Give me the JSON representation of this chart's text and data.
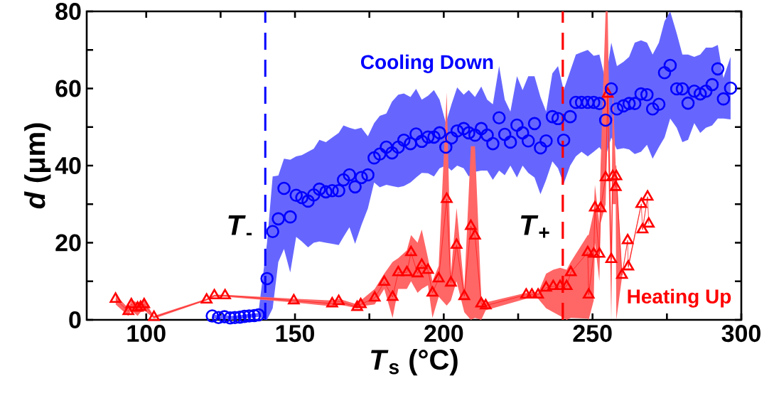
{
  "chart_data": {
    "type": "scatter",
    "xlabel": "*T*$_{s}$ (°C)",
    "ylabel": "*d* (μm)",
    "xlim": [
      80,
      300
    ],
    "ylim": [
      0,
      80
    ],
    "xticks": [
      100,
      {
        "value": 125,
        "label": null
      },
      150,
      {
        "value": 175,
        "label": null
      },
      200,
      {
        "value": 225,
        "label": null
      },
      250,
      {
        "value": 275,
        "label": null
      },
      300
    ],
    "yticks": [
      0,
      {
        "value": 10,
        "label": null
      },
      20,
      {
        "value": 30,
        "label": null
      },
      40,
      {
        "value": 50,
        "label": null
      },
      60,
      {
        "value": 70,
        "label": null
      },
      80
    ],
    "grid": false,
    "legend": false,
    "ref_lines": [
      {
        "axis": "x",
        "value": 140,
        "label": "*T*$_{-}$",
        "color": "#0000ff",
        "line_style": "dashed"
      },
      {
        "axis": "x",
        "value": 240,
        "label": "*T*$_{+}$",
        "color": "#ff0000",
        "line_style": "dashed"
      }
    ],
    "series": [
      {
        "name": "Cooling Down",
        "type": "scatter",
        "marker": "circle",
        "color": "#0000ff",
        "x": [
          122.2,
          124.3,
          126.3,
          128.2,
          129.8,
          131.5,
          133.0,
          134.6,
          136.3,
          137.7,
          140.6,
          142.5,
          144.4,
          146.3,
          148.4,
          150.4,
          152.3,
          154.4,
          156.3,
          158.2,
          160.4,
          162.5,
          164.7,
          166.3,
          168.3,
          170.2,
          172.3,
          174.5,
          176.6,
          178.5,
          180.7,
          182.6,
          184.7,
          186.6,
          188.8,
          190.7,
          192.6,
          194.7,
          196.7,
          198.6,
          200.7,
          202.6,
          204.5,
          206.7,
          208.4,
          210.5,
          212.6,
          214.6,
          216.5,
          218.6,
          220.5,
          222.4,
          224.6,
          226.5,
          228.4,
          230.5,
          232.5,
          234.4,
          236.5,
          238.4,
          240.3,
          242.5,
          244.4,
          246.3,
          248.4,
          250.4,
          252.3,
          254.4,
          256.3,
          258.2,
          260.4,
          262.3,
          264.2,
          266.3,
          268.3,
          270.2,
          272.3,
          274.2,
          276.1,
          278.3,
          280.2,
          282.1,
          284.2,
          286.2,
          288.1,
          290.2,
          292.1,
          294.0,
          296.4
        ],
        "values": [
          1.0,
          0.6,
          0.8,
          0.5,
          0.6,
          0.7,
          0.9,
          1.0,
          1.1,
          1.3,
          10.7,
          22.9,
          26.2,
          34.1,
          26.7,
          32.3,
          31.7,
          30.8,
          32.4,
          33.9,
          33.2,
          33.5,
          33.5,
          36.3,
          37.6,
          34.5,
          36.9,
          37.6,
          42.0,
          43.0,
          44.8,
          43.3,
          44.8,
          46.6,
          45.7,
          48.2,
          46.3,
          47.4,
          47.4,
          48.5,
          44.8,
          47.2,
          49.0,
          49.6,
          48.5,
          47.9,
          49.6,
          47.9,
          45.7,
          52.4,
          48.1,
          46.1,
          50.5,
          48.5,
          46.4,
          50.9,
          44.6,
          46.4,
          52.7,
          52.2,
          46.6,
          52.7,
          56.4,
          56.4,
          56.4,
          56.4,
          56.1,
          51.8,
          59.9,
          54.7,
          55.5,
          56.1,
          56.1,
          58.6,
          58.4,
          54.7,
          55.9,
          64.1,
          66.0,
          59.9,
          59.9,
          56.2,
          59.3,
          58.6,
          59.3,
          61.0,
          65.1,
          57.3,
          60.1
        ],
        "lower": [
          0.5,
          0.1,
          0.3,
          0,
          0.1,
          0.2,
          0.4,
          0.5,
          0.6,
          0.8,
          0,
          3,
          15,
          18.4,
          12.3,
          21.5,
          20.3,
          18.8,
          20.0,
          20.3,
          20.0,
          19.7,
          19.4,
          21.5,
          24.0,
          19.7,
          24.5,
          28.9,
          35.6,
          34.4,
          35.0,
          34.7,
          34.4,
          34.7,
          35.6,
          36.9,
          38.1,
          38.0,
          37.2,
          39.3,
          40.0,
          38.7,
          40,
          39.3,
          37.2,
          38.4,
          38.7,
          38.7,
          36.3,
          38.7,
          37.5,
          40,
          36.9,
          40,
          38.1,
          36.9,
          32.6,
          36.3,
          41.1,
          39.3,
          35.3,
          40,
          42.4,
          43.6,
          42.4,
          43.6,
          44.8,
          42.4,
          47.3,
          44.2,
          44.5,
          44.2,
          43.0,
          43.6,
          45.4,
          41.8,
          44.8,
          47.3,
          52.2,
          49.8,
          46.1,
          46.7,
          51.0,
          48.5,
          49.8,
          50.4,
          52.2,
          52.2,
          52.0
        ],
        "upper": [
          1.5,
          1.1,
          1.3,
          1.0,
          1.1,
          1.2,
          1.4,
          1.5,
          1.6,
          1.8,
          20,
          37.2,
          37.4,
          41.8,
          41.5,
          42.4,
          42.7,
          43.6,
          44.4,
          46.7,
          46.1,
          47.3,
          48.5,
          50.4,
          49.8,
          49.4,
          49.8,
          47.6,
          51.0,
          52.9,
          53.5,
          56.6,
          58.4,
          58.7,
          57.8,
          59.9,
          57.1,
          58.1,
          59.6,
          57.1,
          51.0,
          55.9,
          60.3,
          58.4,
          59.6,
          57.8,
          60.5,
          57.1,
          55.9,
          65.8,
          57.1,
          54.0,
          63.2,
          59.6,
          63.2,
          63.2,
          57.8,
          54.0,
          63.9,
          65.8,
          59.6,
          64.5,
          68.8,
          69.4,
          70.0,
          68.5,
          68.8,
          62.0,
          71.9,
          65.8,
          66.9,
          68.2,
          71.9,
          72.5,
          71.9,
          68.8,
          71.9,
          77.4,
          80,
          74.3,
          68.8,
          68.8,
          68.2,
          68.8,
          70.6,
          70.6,
          71.3,
          62.7,
          68.2
        ]
      },
      {
        "name": "Heating Up",
        "type": "line",
        "line_style": "solid",
        "marker": "triangle",
        "color": "#ff0000",
        "x": [
          89.7,
          94.0,
          95.0,
          97.1,
          98.1,
          99.3,
          102.6,
          120.3,
          122.9,
          126.5,
          149.6,
          162.5,
          164.7,
          170.9,
          172.1,
          176.8,
          180.0,
          182.8,
          184.7,
          187.6,
          189.0,
          191.2,
          192.6,
          194.7,
          196.2,
          198.3,
          201.0,
          202.4,
          204.3,
          206.9,
          209.1,
          210.5,
          212.6,
          214.1,
          227.7,
          229.6,
          231.7,
          234.4,
          236.8,
          239.1,
          241.3,
          242.7,
          248.4,
          248.7,
          250.4,
          250.8,
          252.3,
          252.7,
          254.4,
          255.1,
          256.3,
          256.8,
          257.8,
          258.0,
          259.9,
          261.8,
          262.0,
          266.4,
          266.8,
          268.5,
          268.9
        ],
        "values": [
          5.4,
          2.2,
          4.0,
          3.1,
          3.3,
          4.0,
          0.7,
          5.2,
          6.3,
          6.3,
          5.0,
          4.2,
          4.8,
          3.3,
          4.0,
          5.7,
          9.8,
          5.9,
          12.3,
          12.3,
          17.5,
          12.0,
          14.2,
          12.9,
          7.0,
          10.7,
          31.3,
          9.6,
          19.4,
          6.1,
          24.3,
          21.8,
          4.2,
          3.7,
          6.5,
          6.5,
          6.5,
          8.3,
          8.7,
          8.7,
          8.7,
          12.3,
          17.5,
          6.5,
          17.1,
          29.1,
          17.1,
          28.9,
          36.9,
          58.6,
          15.7,
          37.2,
          34.4,
          37.2,
          11.6,
          20.6,
          13.8,
          30.0,
          23.4,
          31.9,
          24.9
        ],
        "lower": [
          4,
          1,
          2.5,
          1,
          2,
          2.5,
          0.3,
          5,
          6,
          6,
          4.5,
          3.5,
          4,
          3,
          3.5,
          4,
          8,
          0.5,
          8,
          8,
          10,
          7,
          8,
          9,
          0.5,
          6,
          3.7,
          5,
          10,
          2,
          0,
          0.5,
          0,
          2.5,
          5.5,
          5.6,
          5.5,
          3,
          2,
          1,
          0,
          0.5,
          0.3,
          0,
          5,
          20,
          10,
          25,
          30,
          50,
          0,
          30,
          30,
          0,
          11,
          20,
          13,
          29.5,
          23,
          31.4,
          24.4
        ],
        "upper": [
          6.5,
          3,
          5,
          4.5,
          4.5,
          5,
          1,
          5.5,
          6.5,
          6.5,
          5.5,
          5,
          5.5,
          4,
          5,
          8,
          12,
          15,
          16,
          18,
          22,
          20,
          23.4,
          16,
          10,
          14,
          59,
          12,
          29,
          8,
          45,
          45,
          6,
          4.5,
          7,
          7.2,
          7,
          12,
          13,
          13.5,
          13,
          15,
          22,
          22,
          28,
          35,
          25,
          40,
          80,
          80,
          20,
          60,
          40,
          40,
          12,
          21,
          14.5,
          30.5,
          24,
          32.4,
          25.4
        ]
      }
    ]
  }
}
